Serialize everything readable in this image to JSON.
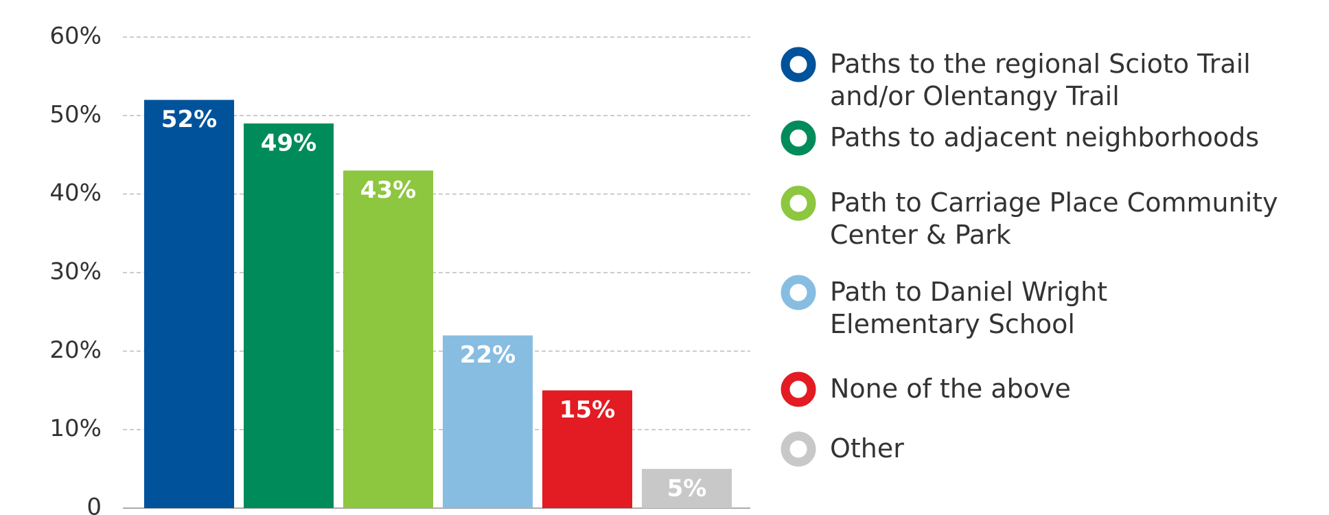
{
  "chart_data": {
    "type": "bar",
    "categories": [
      "Paths to the regional Scioto Trail and/or Olentangy Trail",
      "Paths to adjacent neighborhoods",
      "Path to Carriage Place Community Center & Park",
      "Path to Daniel Wright Elementary School",
      "None of the above",
      "Other"
    ],
    "values": [
      52,
      49,
      43,
      22,
      15,
      5
    ],
    "value_labels": [
      "52%",
      "49%",
      "43%",
      "22%",
      "15%",
      "5%"
    ],
    "colors": [
      "#00529b",
      "#008c5a",
      "#8dc63f",
      "#88bde2",
      "#e31b23",
      "#c8c8c8"
    ],
    "ylim": [
      0,
      60
    ],
    "yticks": [
      0,
      {
        "value": 10,
        "label": "10%"
      },
      {
        "value": 20,
        "label": "20%"
      },
      {
        "value": 30,
        "label": "30%"
      },
      {
        "value": 40,
        "label": "40%"
      },
      {
        "value": 50,
        "label": "50%"
      },
      {
        "value": 60,
        "label": "60%"
      }
    ],
    "grid": true,
    "legend": "right"
  }
}
